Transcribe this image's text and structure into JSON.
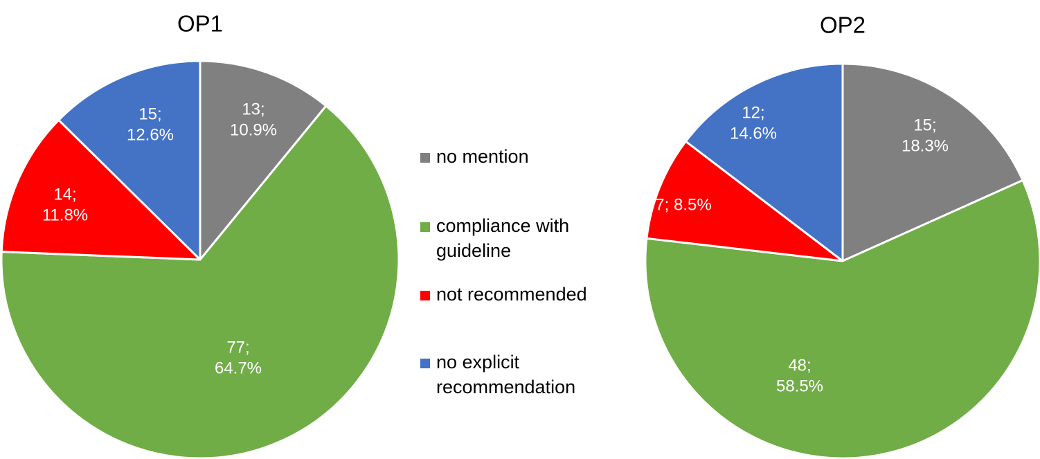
{
  "chart_data": [
    {
      "type": "pie",
      "title": "OP1",
      "slices": [
        {
          "name": "no mention",
          "value": 13,
          "label": "13;|10.9%"
        },
        {
          "name": "compliance with guideline",
          "value": 77,
          "label": "77;|64.7%"
        },
        {
          "name": "not recommended",
          "value": 14,
          "label": "14;|11.8%"
        },
        {
          "name": "no explicit recommendation",
          "value": 15,
          "label": "15;|12.6%"
        }
      ]
    },
    {
      "type": "pie",
      "title": "OP2",
      "slices": [
        {
          "name": "no mention",
          "value": 15,
          "label": "15;|18.3%"
        },
        {
          "name": "compliance with guideline",
          "value": 48,
          "label": "48;|58.5%"
        },
        {
          "name": "not recommended",
          "value": 7,
          "label": "7; 8.5%"
        },
        {
          "name": "no explicit recommendation",
          "value": 12,
          "label": "12;|14.6%"
        }
      ]
    }
  ],
  "legend": {
    "placement": "center",
    "items": [
      {
        "label": "no mention",
        "color": "#808080"
      },
      {
        "label": "compliance with|guideline",
        "color": "#70AD47"
      },
      {
        "label": "not recommended",
        "color": "#FF0000"
      },
      {
        "label": "no explicit|recommendation",
        "color": "#4472C4"
      }
    ]
  }
}
